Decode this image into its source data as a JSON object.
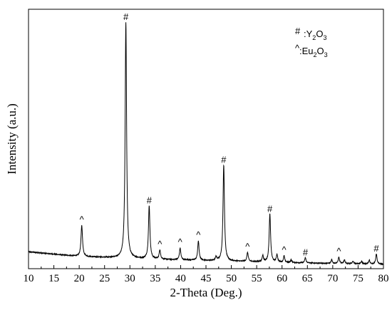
{
  "chart_data": {
    "type": "line",
    "xlabel": "2-Theta (Deg.)",
    "ylabel": "Intensity (a.u.)",
    "xlim": [
      10,
      80
    ],
    "ylim": [
      0,
      100
    ],
    "x_ticks": [
      10,
      15,
      20,
      25,
      30,
      35,
      40,
      45,
      50,
      55,
      60,
      65,
      70,
      75,
      80
    ],
    "y_ticks_shown": false,
    "grid": false,
    "legend": {
      "placement": "top-right",
      "entries": [
        {
          "symbol": "#",
          "label": ":Y",
          "sub1": "2",
          "mid": "O",
          "sub2": "3"
        },
        {
          "symbol": "^",
          "label": ":Eu",
          "sub1": "2",
          "mid": "O",
          "sub2": "3"
        }
      ]
    },
    "series": [
      {
        "color": "#000000",
        "background": {
          "x": [
            10,
            20,
            30,
            40,
            50,
            60,
            70,
            80
          ],
          "y": [
            6.5,
            4.7,
            4.0,
            3.4,
            2.9,
            2.4,
            2.0,
            1.7
          ]
        },
        "peaks": [
          {
            "x": 20.5,
            "height": 12,
            "width": 0.18,
            "marker": "^"
          },
          {
            "x": 29.2,
            "height": 91,
            "width": 0.17,
            "marker": "#"
          },
          {
            "x": 33.8,
            "height": 20.5,
            "width": 0.17,
            "marker": "#"
          },
          {
            "x": 35.9,
            "height": 3.5,
            "width": 0.16,
            "marker": "^"
          },
          {
            "x": 39.9,
            "height": 4.5,
            "width": 0.16,
            "marker": "^"
          },
          {
            "x": 43.5,
            "height": 7.5,
            "width": 0.16,
            "marker": "^"
          },
          {
            "x": 47.0,
            "height": 1.5,
            "width": 0.15,
            "marker": ""
          },
          {
            "x": 48.5,
            "height": 37,
            "width": 0.17,
            "marker": "#"
          },
          {
            "x": 53.2,
            "height": 3.5,
            "width": 0.16,
            "marker": "^"
          },
          {
            "x": 56.2,
            "height": 2.5,
            "width": 0.15,
            "marker": ""
          },
          {
            "x": 57.6,
            "height": 18.5,
            "width": 0.17,
            "marker": "#"
          },
          {
            "x": 59.0,
            "height": 3.0,
            "width": 0.15,
            "marker": ""
          },
          {
            "x": 60.4,
            "height": 2.5,
            "width": 0.15,
            "marker": "^"
          },
          {
            "x": 61.8,
            "height": 1.0,
            "width": 0.15,
            "marker": ""
          },
          {
            "x": 64.6,
            "height": 2.0,
            "width": 0.15,
            "marker": "#"
          },
          {
            "x": 69.8,
            "height": 1.5,
            "width": 0.15,
            "marker": ""
          },
          {
            "x": 71.2,
            "height": 2.5,
            "width": 0.15,
            "marker": "^"
          },
          {
            "x": 72.3,
            "height": 1.5,
            "width": 0.15,
            "marker": ""
          },
          {
            "x": 74.0,
            "height": 1.0,
            "width": 0.15,
            "marker": ""
          },
          {
            "x": 75.7,
            "height": 1.0,
            "width": 0.15,
            "marker": ""
          },
          {
            "x": 77.2,
            "height": 1.5,
            "width": 0.15,
            "marker": ""
          },
          {
            "x": 78.6,
            "height": 4.0,
            "width": 0.15,
            "marker": "#"
          }
        ],
        "noise_amplitude": 0.35
      }
    ]
  }
}
